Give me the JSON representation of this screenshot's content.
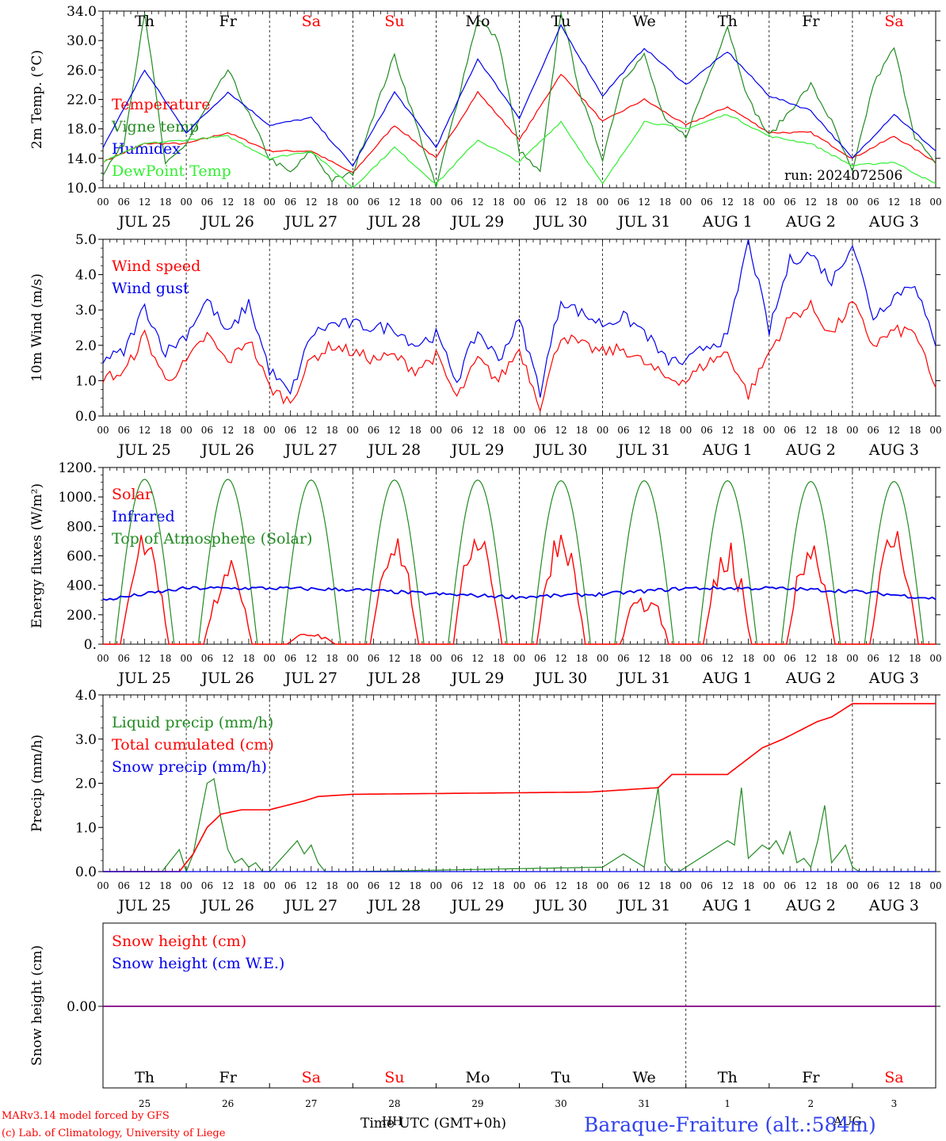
{
  "colors": {
    "red": "#ff0000",
    "green": "#228b22",
    "lightgreen": "#33ee33",
    "blue": "#0000ee",
    "purple": "#800080",
    "black": "#000000"
  },
  "days": [
    "JUL 25",
    "JUL 26",
    "JUL 27",
    "JUL 28",
    "JUL 29",
    "JUL 30",
    "JUL 31",
    "AUG  1",
    "AUG  2",
    "AUG  3"
  ],
  "weekdays": [
    {
      "label": "Th",
      "weekend": false
    },
    {
      "label": "Fr",
      "weekend": false
    },
    {
      "label": "Sa",
      "weekend": true
    },
    {
      "label": "Su",
      "weekend": true
    },
    {
      "label": "Mo",
      "weekend": false
    },
    {
      "label": "Tu",
      "weekend": false
    },
    {
      "label": "We",
      "weekend": false
    },
    {
      "label": "Th",
      "weekend": false
    },
    {
      "label": "Fr",
      "weekend": false
    },
    {
      "label": "Sa",
      "weekend": true
    }
  ],
  "day_numbers": [
    "25",
    "26",
    "27",
    "28",
    "29",
    "30",
    "31",
    "1",
    "2",
    "3"
  ],
  "hour_labels": [
    "00",
    "06",
    "12",
    "18"
  ],
  "final_hour_label": "00",
  "run_label": "run: 2024072506",
  "footer": {
    "credit_line1": "MARv3.14 model forced by GFS",
    "credit_line2": "(c) Lab. of Climatology, University of Liege",
    "xlabel": "Time UTC (GMT+0h)",
    "xlabel_overlap": "HH",
    "station": "Baraque-Fraiture (alt.:584m)",
    "month_overlap": "AUG"
  },
  "chart_data": [
    {
      "type": "line",
      "ylabel": "2m Temp. (°C)",
      "ylim": [
        10,
        34
      ],
      "yticks": [
        "10.0",
        "14.0",
        "18.0",
        "22.0",
        "26.0",
        "30.0",
        "34.0"
      ],
      "grid": "vertical dotted lines at midnight",
      "legend_placement": "left",
      "series": [
        {
          "name": "Temperature",
          "color": "red",
          "x": [
            0,
            12,
            24,
            36,
            48,
            60,
            72,
            84,
            96,
            108,
            120,
            132,
            144,
            156,
            168,
            180,
            192,
            204,
            216,
            228,
            240
          ],
          "values": [
            13.5,
            16,
            16,
            17.5,
            15,
            15,
            12,
            18.5,
            14,
            23,
            16.5,
            25.5,
            19,
            22,
            18.5,
            21,
            17.5,
            17.5,
            14,
            17,
            13.5
          ]
        },
        {
          "name": "Vigne temp",
          "color": "green",
          "x": [
            0,
            6,
            12,
            18,
            24,
            36,
            48,
            54,
            60,
            66,
            72,
            84,
            96,
            108,
            114,
            120,
            126,
            132,
            138,
            144,
            150,
            156,
            162,
            168,
            180,
            186,
            192,
            204,
            210,
            216,
            222,
            228,
            234,
            240
          ],
          "values": [
            12,
            16,
            34,
            13,
            16,
            26,
            14,
            12,
            15,
            11,
            12,
            28,
            10,
            33,
            30,
            15,
            12,
            34,
            22,
            14,
            25,
            28,
            19,
            17,
            32,
            22,
            17,
            24,
            19,
            12,
            24,
            29,
            17,
            13
          ]
        },
        {
          "name": "Humidex",
          "color": "blue",
          "x": [
            0,
            12,
            24,
            36,
            48,
            60,
            72,
            84,
            96,
            108,
            120,
            132,
            144,
            156,
            168,
            180,
            192,
            204,
            216,
            228,
            240
          ],
          "values": [
            15.5,
            26,
            17.5,
            23,
            18.5,
            19.5,
            13,
            23,
            15.5,
            27.5,
            19.5,
            32,
            22.5,
            29,
            24,
            28.5,
            22.5,
            20.5,
            14,
            20,
            15
          ]
        },
        {
          "name": "DewPoint Temp",
          "color": "lightgreen",
          "x": [
            0,
            12,
            24,
            36,
            48,
            60,
            72,
            84,
            96,
            108,
            120,
            132,
            144,
            156,
            168,
            180,
            192,
            204,
            216,
            228,
            240
          ],
          "values": [
            13.5,
            16,
            16.5,
            17,
            14,
            15,
            10,
            15.5,
            10.5,
            16.5,
            13.5,
            19,
            10.5,
            19,
            18,
            20,
            17,
            16,
            13,
            13.5,
            10.5
          ]
        }
      ]
    },
    {
      "type": "line",
      "ylabel": "10m Wind (m/s)",
      "ylim": [
        0,
        5
      ],
      "yticks": [
        "0.0",
        "1.0",
        "2.0",
        "3.0",
        "4.0",
        "5.0"
      ],
      "legend_placement": "left",
      "series": [
        {
          "name": "Wind speed",
          "color": "red",
          "x": [
            0,
            6,
            12,
            18,
            24,
            30,
            36,
            42,
            48,
            54,
            60,
            66,
            72,
            78,
            84,
            90,
            96,
            102,
            108,
            114,
            120,
            126,
            132,
            138,
            144,
            150,
            156,
            162,
            168,
            174,
            180,
            186,
            192,
            198,
            204,
            210,
            216,
            222,
            228,
            234,
            240
          ],
          "values": [
            1.1,
            1.2,
            2.3,
            1.0,
            1.5,
            2.3,
            1.5,
            2.2,
            0.8,
            0.4,
            1.6,
            2.0,
            1.8,
            1.6,
            1.7,
            1.3,
            1.7,
            0.5,
            1.6,
            1.0,
            1.9,
            0.3,
            2.3,
            2.0,
            1.8,
            1.9,
            1.5,
            1.1,
            1.0,
            1.5,
            1.8,
            0.6,
            1.8,
            2.8,
            3.1,
            2.3,
            3.2,
            2.0,
            2.4,
            2.4,
            0.7
          ]
        },
        {
          "name": "Wind gust",
          "color": "blue",
          "x": [
            0,
            6,
            12,
            18,
            24,
            30,
            36,
            42,
            48,
            54,
            60,
            66,
            72,
            78,
            84,
            90,
            96,
            102,
            108,
            114,
            120,
            126,
            132,
            138,
            144,
            150,
            156,
            162,
            168,
            174,
            180,
            186,
            192,
            198,
            204,
            210,
            216,
            222,
            228,
            234,
            240
          ],
          "values": [
            1.6,
            1.8,
            3.1,
            1.8,
            2.3,
            3.3,
            2.3,
            3.2,
            1.3,
            0.6,
            2.3,
            2.6,
            2.6,
            2.5,
            2.5,
            2.0,
            2.3,
            1.0,
            2.4,
            1.6,
            2.7,
            0.7,
            3.3,
            2.9,
            2.6,
            2.8,
            2.4,
            1.6,
            1.5,
            2.0,
            2.2,
            5.0,
            2.4,
            4.4,
            4.6,
            3.8,
            4.9,
            2.8,
            3.4,
            3.8,
            1.9
          ]
        }
      ]
    },
    {
      "type": "line",
      "ylabel": "Energy fluxes (W/m²)",
      "ylim": [
        0,
        1200
      ],
      "yticks": [
        "0.",
        "200.",
        "400.",
        "600.",
        "800.",
        "1000.",
        "1200."
      ],
      "legend_placement": "left",
      "series": [
        {
          "name": "Solar",
          "color": "red",
          "daily_peaks": [
            800,
            550,
            80,
            800,
            860,
            840,
            400,
            660,
            750,
            830
          ]
        },
        {
          "name": "Infrared",
          "color": "blue",
          "x": [
            0,
            24,
            48,
            72,
            96,
            120,
            144,
            168,
            192,
            216,
            240
          ],
          "values": [
            300,
            380,
            380,
            370,
            340,
            320,
            340,
            380,
            380,
            360,
            310
          ]
        },
        {
          "name": "Top of Atmosphere (Solar)",
          "color": "green",
          "daily_peaks": [
            1120,
            1120,
            1115,
            1115,
            1115,
            1110,
            1110,
            1110,
            1105,
            1105
          ]
        }
      ]
    },
    {
      "type": "line",
      "ylabel": "Precip (mm/h)",
      "ylim": [
        0,
        4
      ],
      "yticks": [
        "0.0",
        "1.0",
        "2.0",
        "3.0",
        "4.0"
      ],
      "legend_placement": "left",
      "series": [
        {
          "name": "Liquid precip (mm/h)",
          "color": "green",
          "x": [
            18,
            22,
            24,
            26,
            30,
            32,
            34,
            36,
            38,
            40,
            42,
            44,
            46,
            48,
            56,
            58,
            60,
            62,
            64,
            72,
            144,
            150,
            156,
            160,
            162,
            164,
            166,
            180,
            182,
            184,
            186,
            190,
            192,
            194,
            196,
            198,
            200,
            202,
            204,
            206,
            208,
            210,
            212,
            214,
            216,
            218
          ],
          "values": [
            0.1,
            0.5,
            0,
            0.4,
            2.0,
            2.1,
            1.2,
            0.5,
            0.2,
            0.3,
            0.1,
            0.2,
            0,
            0,
            0.7,
            0.4,
            0.6,
            0.2,
            0,
            0,
            0.1,
            0.4,
            0.1,
            1.9,
            0.2,
            0,
            0,
            0.7,
            0.6,
            1.9,
            0.3,
            0.6,
            0.5,
            0.7,
            0.4,
            0.9,
            0.2,
            0.3,
            0.1,
            0.7,
            1.5,
            0.2,
            0.4,
            0.6,
            0.1,
            0
          ]
        },
        {
          "name": "Total cumulated (cm)",
          "color": "red",
          "x": [
            0,
            22,
            26,
            30,
            34,
            40,
            44,
            48,
            58,
            62,
            72,
            140,
            160,
            164,
            180,
            190,
            196,
            206,
            210,
            216,
            240
          ],
          "values": [
            0,
            0,
            0.4,
            1.0,
            1.3,
            1.4,
            1.4,
            1.4,
            1.6,
            1.7,
            1.75,
            1.8,
            1.9,
            2.2,
            2.2,
            2.8,
            3.0,
            3.4,
            3.5,
            3.8,
            3.8
          ]
        },
        {
          "name": "Snow precip (mm/h)",
          "color": "blue",
          "x": [
            0,
            240
          ],
          "values": [
            0,
            0
          ]
        }
      ]
    },
    {
      "type": "line",
      "ylabel": "Snow height (cm)",
      "yticks": [
        "0.00"
      ],
      "legend_placement": "left",
      "series": [
        {
          "name": "Snow height (cm)",
          "color": "red",
          "x": [
            0,
            240
          ],
          "values": [
            0,
            0
          ]
        },
        {
          "name": "Snow height (cm W.E.)",
          "color": "blue",
          "x": [
            0,
            240
          ],
          "values": [
            0,
            0
          ]
        }
      ]
    }
  ]
}
